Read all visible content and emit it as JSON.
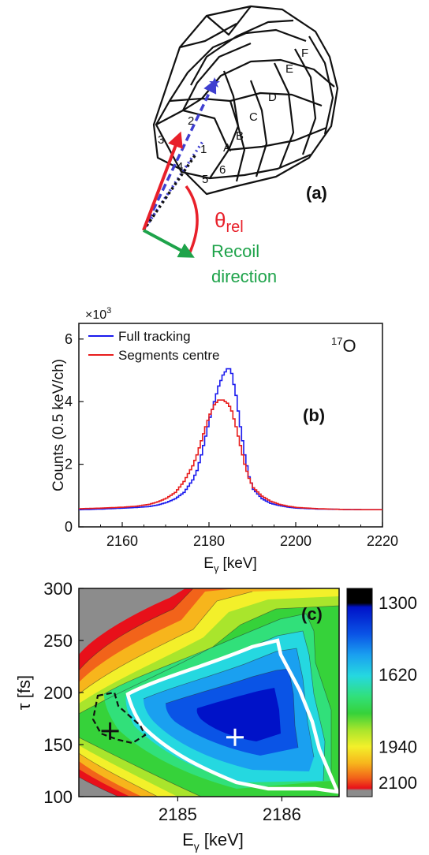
{
  "panel_a": {
    "label": "(a)",
    "theta_symbol": "θ",
    "theta_sub": "rel",
    "recoil_line1": "Recoil",
    "recoil_line2": "direction",
    "segments": [
      "1",
      "2",
      "3",
      "4",
      "5",
      "6"
    ],
    "rings": [
      "A",
      "B",
      "C",
      "D",
      "E",
      "F"
    ],
    "colors": {
      "red_arrow": "#e8202a",
      "blue_dash": "#3f3fd0",
      "green_arrow": "#1ea34a",
      "black": "#111111"
    }
  },
  "chart_data": [
    {
      "type": "line",
      "panel_label": "(b)",
      "annotation": "17O",
      "annotation_sup": "17",
      "annotation_base": "O",
      "multiplier": "×10",
      "multiplier_sup": "3",
      "xlabel": "E",
      "xlabel_sub": "γ",
      "xlabel_unit": "[keV]",
      "ylabel": "Counts (0.5 keV/ch)",
      "xlim": [
        2150,
        2220
      ],
      "ylim": [
        0,
        6.5
      ],
      "x_ticks": [
        2160,
        2180,
        2200,
        2220
      ],
      "y_ticks": [
        0,
        2,
        4,
        6
      ],
      "legend_position": "top-left",
      "x": [
        2150,
        2155,
        2160,
        2163,
        2166,
        2168,
        2170,
        2172,
        2174,
        2176,
        2177,
        2178,
        2179,
        2180,
        2181,
        2182,
        2183,
        2184,
        2184.5,
        2185,
        2186,
        2187,
        2188,
        2189,
        2190,
        2192,
        2194,
        2196,
        2198,
        2200,
        2205,
        2210,
        2215,
        2220
      ],
      "series": [
        {
          "name": "Full tracking",
          "color": "#1a1aee",
          "values": [
            0.55,
            0.57,
            0.6,
            0.62,
            0.65,
            0.7,
            0.78,
            0.9,
            1.1,
            1.5,
            1.8,
            2.3,
            2.9,
            3.5,
            4.0,
            4.5,
            4.85,
            5.05,
            5.05,
            4.9,
            4.2,
            3.2,
            2.3,
            1.6,
            1.2,
            0.9,
            0.75,
            0.68,
            0.63,
            0.6,
            0.57,
            0.56,
            0.55,
            0.55
          ]
        },
        {
          "name": "Segments centre",
          "color": "#e81c1c",
          "values": [
            0.58,
            0.6,
            0.63,
            0.66,
            0.72,
            0.8,
            0.92,
            1.1,
            1.45,
            1.95,
            2.3,
            2.75,
            3.2,
            3.6,
            3.9,
            4.05,
            4.05,
            3.95,
            3.85,
            3.7,
            3.2,
            2.6,
            2.0,
            1.55,
            1.25,
            0.98,
            0.82,
            0.72,
            0.66,
            0.62,
            0.58,
            0.56,
            0.55,
            0.55
          ]
        }
      ]
    },
    {
      "type": "heatmap",
      "panel_label": "(c)",
      "xlabel": "E",
      "xlabel_sub": "γ",
      "xlabel_unit": "[keV]",
      "ylabel": "τ [fs]",
      "xlim": [
        2184.05,
        2186.55
      ],
      "ylim": [
        100,
        300
      ],
      "x_ticks": [
        2185,
        2186
      ],
      "y_ticks": [
        100,
        150,
        200,
        250,
        300
      ],
      "colorbar_labels": [
        "1300",
        "1620",
        "1940",
        "2100"
      ],
      "colorbar_range": [
        1300,
        2100
      ],
      "minimum_global": {
        "E": 2185.55,
        "tau": 157
      },
      "minimum_local": {
        "E": 2184.35,
        "tau": 163
      },
      "colors": {
        "no_data": "#8c8c8c",
        "white_contour": "#ffffff",
        "black_contour": "#111111"
      }
    }
  ]
}
